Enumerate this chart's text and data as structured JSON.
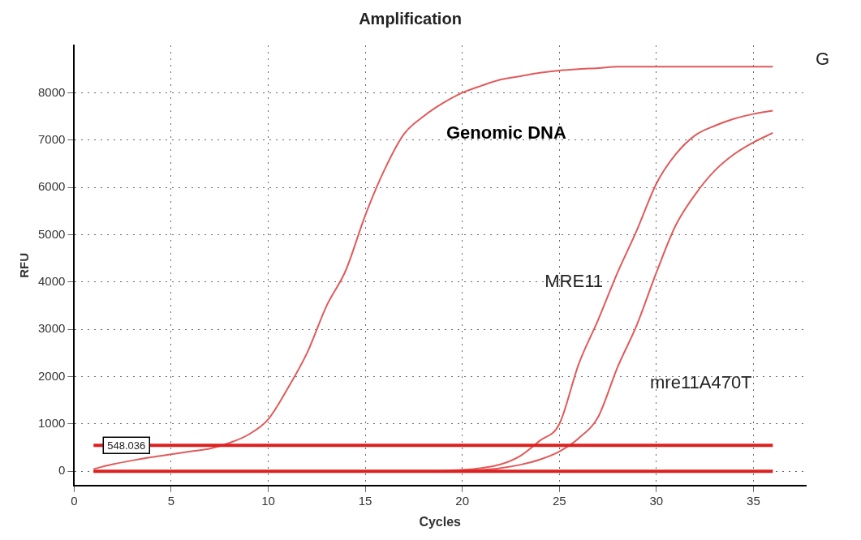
{
  "chart_data": {
    "type": "line",
    "title": "Amplification",
    "xlabel": "Cycles",
    "ylabel": "RFU",
    "xlim": [
      0,
      37.7
    ],
    "xticks": [
      0,
      5,
      10,
      15,
      20,
      25,
      30,
      35
    ],
    "ylim": [
      -300,
      9000
    ],
    "yticks": [
      0,
      1000,
      2000,
      3000,
      4000,
      5000,
      6000,
      7000,
      8000
    ],
    "grid": true,
    "line_style": "solid",
    "marker": "none",
    "legend": false,
    "x": [
      1,
      2,
      3,
      4,
      5,
      6,
      7,
      8,
      9,
      10,
      11,
      12,
      13,
      14,
      15,
      16,
      17,
      18,
      19,
      20,
      21,
      22,
      23,
      24,
      25,
      26,
      27,
      28,
      29,
      30,
      31,
      32,
      33,
      34,
      35,
      36
    ],
    "series": [
      {
        "name": "Genomic DNA",
        "color": "#e05a5a",
        "values": [
          50,
          150,
          230,
          300,
          360,
          420,
          480,
          600,
          780,
          1100,
          1750,
          2500,
          3490,
          4250,
          5410,
          6380,
          7130,
          7500,
          7780,
          8000,
          8150,
          8280,
          8350,
          8420,
          8470,
          8500,
          8520,
          8550,
          8550,
          8550,
          8550,
          8550,
          8550,
          8550,
          8550,
          8550
        ]
      },
      {
        "name": "MRE11",
        "color": "#e05a5a",
        "values": [
          0,
          0,
          0,
          0,
          0,
          0,
          0,
          0,
          0,
          0,
          0,
          0,
          0,
          0,
          0,
          0,
          0,
          0,
          10,
          30,
          70,
          150,
          330,
          650,
          1000,
          2270,
          3200,
          4200,
          5100,
          6080,
          6700,
          7100,
          7300,
          7450,
          7550,
          7620
        ]
      },
      {
        "name": "mre11A470T",
        "color": "#e05a5a",
        "values": [
          0,
          0,
          0,
          0,
          0,
          0,
          0,
          0,
          0,
          0,
          0,
          0,
          0,
          0,
          0,
          0,
          0,
          0,
          0,
          10,
          30,
          70,
          140,
          250,
          420,
          700,
          1150,
          2200,
          3100,
          4200,
          5200,
          5850,
          6350,
          6700,
          6950,
          7150
        ]
      }
    ],
    "ref_lines": [
      {
        "axis": "y",
        "value": 548.036,
        "label": "548.036",
        "color": "#dd2020"
      },
      {
        "axis": "y",
        "value": 0,
        "color": "#dd2020"
      }
    ],
    "annotations": [
      "G"
    ]
  }
}
